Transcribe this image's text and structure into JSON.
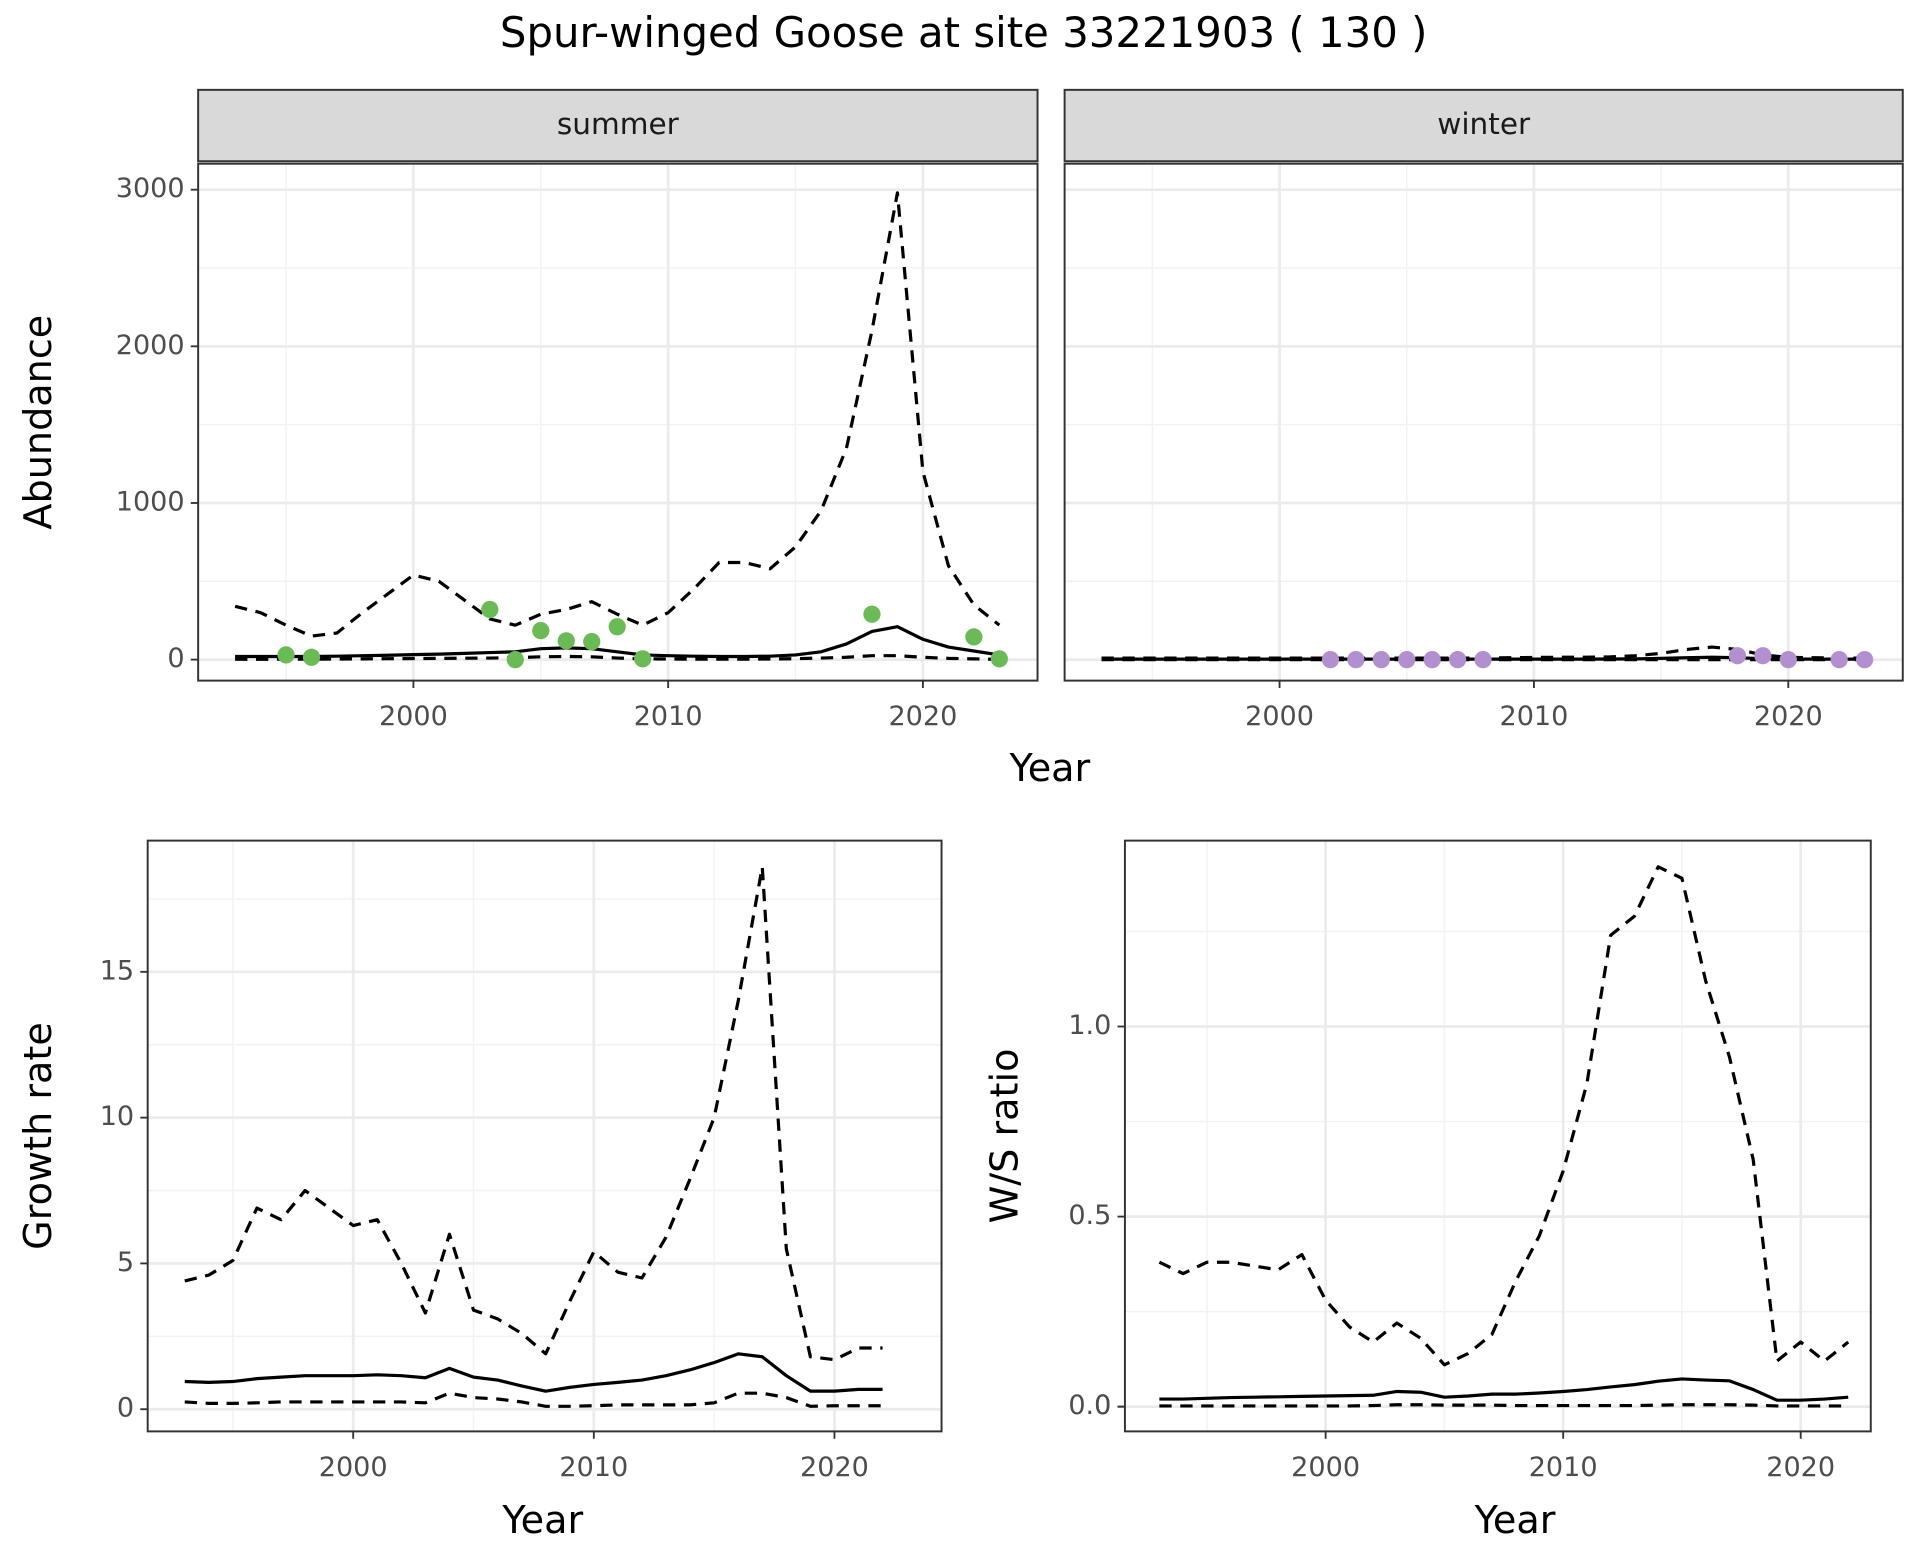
{
  "chart_data": [
    {
      "type": "line",
      "title": "Spur-winged Goose at site 33221903 ( 130 )",
      "facet": "summer",
      "y_label": "Abundance",
      "x_label": "Year",
      "x": [
        1993,
        1994,
        1995,
        1996,
        1997,
        1998,
        1999,
        2000,
        2001,
        2002,
        2003,
        2004,
        2005,
        2006,
        2007,
        2008,
        2009,
        2010,
        2011,
        2012,
        2013,
        2014,
        2015,
        2016,
        2017,
        2018,
        2019,
        2020,
        2021,
        2022,
        2023
      ],
      "series": [
        {
          "style": "solid",
          "color": "#000000",
          "values": [
            20,
            20,
            20,
            20,
            22,
            25,
            28,
            32,
            35,
            40,
            45,
            50,
            70,
            75,
            70,
            50,
            30,
            25,
            22,
            20,
            20,
            22,
            30,
            50,
            100,
            180,
            210,
            130,
            80,
            55,
            30
          ]
        },
        {
          "style": "dashed",
          "color": "#000000",
          "values": [
            2,
            2,
            3,
            3,
            4,
            5,
            6,
            7,
            8,
            9,
            10,
            12,
            18,
            20,
            18,
            10,
            5,
            4,
            3,
            3,
            3,
            4,
            6,
            10,
            15,
            25,
            25,
            15,
            8,
            5,
            2
          ]
        },
        {
          "style": "dashed",
          "color": "#000000",
          "values": [
            340,
            300,
            220,
            150,
            170,
            300,
            420,
            540,
            500,
            380,
            260,
            220,
            290,
            320,
            370,
            290,
            220,
            300,
            450,
            620,
            620,
            580,
            720,
            950,
            1350,
            2100,
            2980,
            1200,
            600,
            350,
            220
          ]
        }
      ],
      "points": {
        "color": "#6abb55",
        "x": [
          1995,
          1996,
          2003,
          2004,
          2005,
          2006,
          2007,
          2008,
          2009,
          2018,
          2022,
          2023
        ],
        "values": [
          30,
          15,
          320,
          0,
          185,
          120,
          115,
          210,
          5,
          290,
          145,
          5
        ]
      },
      "xlim": [
        1991.55,
        2024.5
      ],
      "xticks": [
        2000,
        2010,
        2020
      ],
      "ylim": [
        -134,
        3166
      ],
      "yticks": [
        0,
        1000,
        2000,
        3000
      ],
      "ytick_labels": true,
      "grid": true,
      "minor_grid": true
    },
    {
      "type": "line",
      "facet": "winter",
      "x": [
        1993,
        1994,
        1995,
        1996,
        1997,
        1998,
        1999,
        2000,
        2001,
        2002,
        2003,
        2004,
        2005,
        2006,
        2007,
        2008,
        2009,
        2010,
        2011,
        2012,
        2013,
        2014,
        2015,
        2016,
        2017,
        2018,
        2019,
        2020,
        2021,
        2022,
        2023
      ],
      "series": [
        {
          "style": "solid",
          "color": "#000000",
          "values": [
            3,
            3,
            3,
            3,
            3,
            3,
            3,
            3,
            3,
            3,
            3,
            3,
            3,
            3,
            3,
            3,
            3,
            3,
            3,
            3,
            4,
            5,
            8,
            12,
            15,
            12,
            6,
            4,
            3,
            3,
            3
          ]
        },
        {
          "style": "dashed",
          "color": "#000000",
          "values": [
            0,
            0,
            0,
            0,
            0,
            0,
            0,
            0,
            0,
            0,
            0,
            0,
            0,
            0,
            0,
            0,
            0,
            0,
            0,
            0,
            0,
            0,
            0,
            0,
            0,
            0,
            0,
            0,
            0,
            0,
            0
          ]
        },
        {
          "style": "dashed",
          "color": "#000000",
          "values": [
            10,
            10,
            10,
            10,
            10,
            10,
            10,
            10,
            10,
            10,
            10,
            10,
            10,
            10,
            10,
            10,
            12,
            14,
            15,
            15,
            18,
            25,
            40,
            65,
            80,
            65,
            30,
            15,
            12,
            10,
            10
          ]
        }
      ],
      "points": {
        "color": "#b28fce",
        "x": [
          2002,
          2003,
          2004,
          2005,
          2006,
          2007,
          2008,
          2018,
          2019,
          2020,
          2022,
          2023
        ],
        "values": [
          0,
          0,
          0,
          0,
          0,
          0,
          0,
          25,
          25,
          0,
          0,
          0
        ]
      },
      "xlim": [
        1991.55,
        2024.5
      ],
      "xticks": [
        2000,
        2010,
        2020
      ],
      "ylim": [
        -134,
        3166
      ],
      "yticks": [
        0,
        1000,
        2000,
        3000
      ],
      "ytick_labels": false,
      "grid": true,
      "minor_grid": true
    },
    {
      "type": "line",
      "y_label": "Growth rate",
      "x_label": "Year",
      "x": [
        1993,
        1994,
        1995,
        1996,
        1997,
        1998,
        1999,
        2000,
        2001,
        2002,
        2003,
        2004,
        2005,
        2006,
        2007,
        2008,
        2009,
        2010,
        2011,
        2012,
        2013,
        2014,
        2015,
        2016,
        2017,
        2018,
        2019,
        2020,
        2021,
        2022
      ],
      "series": [
        {
          "style": "solid",
          "color": "#000000",
          "values": [
            0.95,
            0.92,
            0.95,
            1.05,
            1.1,
            1.15,
            1.15,
            1.15,
            1.18,
            1.15,
            1.08,
            1.4,
            1.1,
            1.0,
            0.8,
            0.62,
            0.75,
            0.85,
            0.92,
            1.0,
            1.15,
            1.35,
            1.6,
            1.9,
            1.8,
            1.15,
            0.62,
            0.62,
            0.68,
            0.68
          ]
        },
        {
          "style": "dashed",
          "color": "#000000",
          "values": [
            0.25,
            0.2,
            0.2,
            0.22,
            0.25,
            0.25,
            0.25,
            0.25,
            0.25,
            0.25,
            0.22,
            0.55,
            0.4,
            0.35,
            0.25,
            0.1,
            0.1,
            0.12,
            0.15,
            0.15,
            0.15,
            0.15,
            0.22,
            0.55,
            0.55,
            0.4,
            0.1,
            0.12,
            0.12,
            0.12
          ]
        },
        {
          "style": "dashed",
          "color": "#000000",
          "values": [
            4.4,
            4.6,
            5.1,
            6.9,
            6.5,
            7.5,
            6.9,
            6.3,
            6.5,
            5.0,
            3.3,
            6.0,
            3.4,
            3.1,
            2.6,
            1.9,
            3.7,
            5.4,
            4.7,
            4.5,
            5.9,
            7.9,
            10.0,
            14.0,
            18.6,
            5.5,
            1.8,
            1.7,
            2.1,
            2.1
          ]
        }
      ],
      "xlim": [
        1991.46,
        2024.45
      ],
      "xticks": [
        2000,
        2010,
        2020
      ],
      "ylim": [
        -0.76,
        19.5
      ],
      "yticks": [
        0,
        5,
        10,
        15
      ],
      "ytick_labels": true,
      "grid": true,
      "minor_grid": true
    },
    {
      "type": "line",
      "y_label": "W/S ratio",
      "x_label": "Year",
      "x": [
        1993,
        1994,
        1995,
        1996,
        1997,
        1998,
        1999,
        2000,
        2001,
        2002,
        2003,
        2004,
        2005,
        2006,
        2007,
        2008,
        2009,
        2010,
        2011,
        2012,
        2013,
        2014,
        2015,
        2016,
        2017,
        2018,
        2019,
        2020,
        2021,
        2022
      ],
      "series": [
        {
          "style": "solid",
          "color": "#000000",
          "values": [
            0.02,
            0.02,
            0.022,
            0.024,
            0.025,
            0.026,
            0.027,
            0.028,
            0.029,
            0.03,
            0.04,
            0.038,
            0.025,
            0.028,
            0.033,
            0.033,
            0.036,
            0.04,
            0.045,
            0.052,
            0.058,
            0.067,
            0.073,
            0.07,
            0.068,
            0.045,
            0.017,
            0.017,
            0.02,
            0.025
          ]
        },
        {
          "style": "dashed",
          "color": "#000000",
          "values": [
            0.002,
            0.002,
            0.002,
            0.002,
            0.002,
            0.002,
            0.002,
            0.002,
            0.002,
            0.003,
            0.005,
            0.005,
            0.004,
            0.004,
            0.004,
            0.003,
            0.003,
            0.003,
            0.003,
            0.003,
            0.003,
            0.004,
            0.005,
            0.005,
            0.005,
            0.004,
            0.002,
            0.002,
            0.002,
            0.002
          ]
        },
        {
          "style": "dashed",
          "color": "#000000",
          "values": [
            0.38,
            0.35,
            0.38,
            0.38,
            0.37,
            0.36,
            0.4,
            0.28,
            0.21,
            0.17,
            0.22,
            0.18,
            0.11,
            0.14,
            0.19,
            0.33,
            0.45,
            0.62,
            0.85,
            1.24,
            1.29,
            1.42,
            1.39,
            1.12,
            0.92,
            0.65,
            0.12,
            0.17,
            0.12,
            0.17
          ]
        }
      ],
      "xlim": [
        1991.55,
        2022.95
      ],
      "xticks": [
        2000,
        2010,
        2020
      ],
      "ylim": [
        -0.065,
        1.489
      ],
      "yticks": [
        0,
        {
          "value": 0.5,
          "label": "0.5"
        },
        {
          "value": 1,
          "label": "1.0"
        },
        {
          "value": 0,
          "label": "0.0"
        }
      ],
      "ytick_labels": true,
      "grid": true,
      "minor_grid": true
    }
  ]
}
